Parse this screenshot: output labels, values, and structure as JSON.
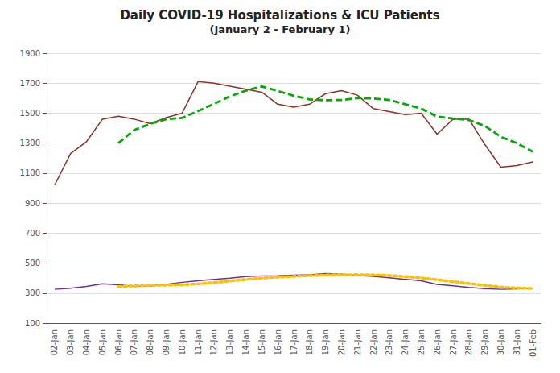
{
  "chart_data": {
    "type": "line",
    "title": "Daily COVID-19 Hospitalizations & ICU Patients",
    "subtitle": "(January 2 - February 1)",
    "categories": [
      "02-Jan",
      "03-Jan",
      "04-Jan",
      "05-Jan",
      "06-Jan",
      "07-Jan",
      "08-Jan",
      "09-Jan",
      "10-Jan",
      "11-Jan",
      "12-Jan",
      "13-Jan",
      "14-Jan",
      "15-Jan",
      "16-Jan",
      "17-Jan",
      "18-Jan",
      "19-Jan",
      "20-Jan",
      "21-Jan",
      "22-Jan",
      "23-Jan",
      "24-Jan",
      "25-Jan",
      "26-Jan",
      "27-Jan",
      "28-Jan",
      "29-Jan",
      "30-Jan",
      "31-Jan",
      "01-Feb"
    ],
    "series": [
      {
        "color": "#943126",
        "line_style": "solid",
        "values": [
          1020,
          1230,
          1310,
          1460,
          1480,
          1460,
          1430,
          1470,
          1500,
          1710,
          1700,
          1680,
          1660,
          1640,
          1560,
          1540,
          1560,
          1630,
          1650,
          1620,
          1530,
          1510,
          1490,
          1500,
          1360,
          1460,
          1460,
          1290,
          1140,
          1150,
          1175
        ]
      },
      {
        "color": "#00AA00",
        "line_style": "dashed",
        "values": [
          null,
          null,
          null,
          null,
          1300,
          1388,
          1428,
          1460,
          1468,
          1514,
          1562,
          1612,
          1650,
          1678,
          1648,
          1616,
          1592,
          1586,
          1588,
          1600,
          1598,
          1588,
          1560,
          1530,
          1478,
          1464,
          1454,
          1414,
          1342,
          1300,
          1243
        ]
      },
      {
        "color": "#6B2FA0",
        "line_style": "solid",
        "values": [
          325,
          332,
          345,
          362,
          355,
          345,
          348,
          358,
          372,
          382,
          392,
          400,
          410,
          415,
          416,
          420,
          422,
          430,
          426,
          418,
          412,
          402,
          392,
          382,
          358,
          348,
          338,
          330,
          325,
          328,
          332
        ]
      },
      {
        "color": "#FFC000",
        "line_style": "dotted",
        "values": [
          null,
          null,
          null,
          null,
          343.8,
          347.8,
          351,
          353.6,
          355.6,
          361,
          370.4,
          380.8,
          391.2,
          399.8,
          406.6,
          412.2,
          416.6,
          420.6,
          422.8,
          423.2,
          421.6,
          417.6,
          410,
          401.2,
          389.2,
          376.4,
          363.6,
          351.2,
          339.8,
          333.8,
          330.6
        ]
      }
    ],
    "ylim": [
      100,
      1900
    ],
    "yticks": [
      100,
      300,
      500,
      700,
      900,
      1100,
      1300,
      1500,
      1700,
      1900
    ],
    "grid": true
  }
}
